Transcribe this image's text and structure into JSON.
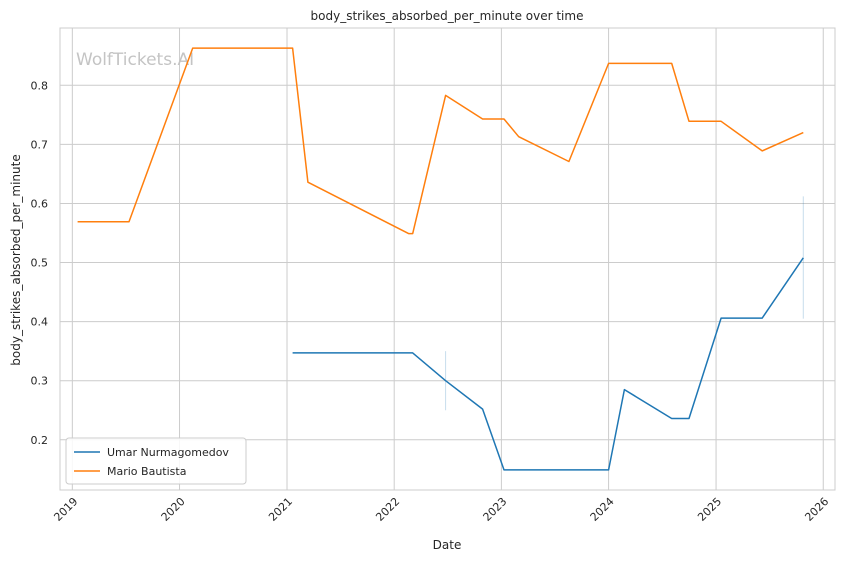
{
  "chart_data": {
    "type": "line",
    "title": "body_strikes_absorbed_per_minute over time",
    "xlabel": "Date",
    "ylabel": "body_strikes_absorbed_per_minute",
    "watermark": "WolfTickets.AI",
    "x_ticks": [
      "2019",
      "2020",
      "2021",
      "2022",
      "2023",
      "2024",
      "2025",
      "2026"
    ],
    "y_ticks": [
      0.2,
      0.3,
      0.4,
      0.5,
      0.6,
      0.7,
      0.8
    ],
    "xlim": [
      "2018-11-20",
      "2026-02-10"
    ],
    "ylim": [
      0.115,
      0.897
    ],
    "grid": true,
    "legend_position": "lower-left",
    "series": [
      {
        "name": "Umar Nurmagomedov",
        "color": "#1f77b4",
        "points": [
          [
            "2021-01-20",
            0.347
          ],
          [
            "2022-03-05",
            0.347
          ],
          [
            "2022-06-25",
            0.3
          ],
          [
            "2022-10-29",
            0.252
          ],
          [
            "2023-01-10",
            0.149
          ],
          [
            "2024-01-01",
            0.149
          ],
          [
            "2024-02-24",
            0.285
          ],
          [
            "2024-08-03",
            0.236
          ],
          [
            "2024-10-01",
            0.236
          ],
          [
            "2025-01-18",
            0.406
          ],
          [
            "2025-06-07",
            0.406
          ],
          [
            "2025-10-25",
            0.508
          ]
        ],
        "bands": [
          {
            "x": "2022-06-25",
            "low": 0.25,
            "high": 0.35
          },
          {
            "x": "2025-10-25",
            "low": 0.405,
            "high": 0.612
          }
        ]
      },
      {
        "name": "Mario Bautista",
        "color": "#ff7f0e",
        "points": [
          [
            "2019-01-19",
            0.569
          ],
          [
            "2019-07-13",
            0.569
          ],
          [
            "2020-02-15",
            0.863
          ],
          [
            "2021-01-20",
            0.863
          ],
          [
            "2021-03-13",
            0.636
          ],
          [
            "2022-02-19",
            0.549
          ],
          [
            "2022-03-05",
            0.549
          ],
          [
            "2022-06-25",
            0.783
          ],
          [
            "2022-10-29",
            0.743
          ],
          [
            "2023-01-10",
            0.743
          ],
          [
            "2023-03-01",
            0.713
          ],
          [
            "2023-08-19",
            0.671
          ],
          [
            "2024-01-01",
            0.837
          ],
          [
            "2024-08-03",
            0.837
          ],
          [
            "2024-10-01",
            0.739
          ],
          [
            "2025-01-18",
            0.739
          ],
          [
            "2025-06-07",
            0.689
          ],
          [
            "2025-10-25",
            0.72
          ]
        ]
      }
    ]
  }
}
